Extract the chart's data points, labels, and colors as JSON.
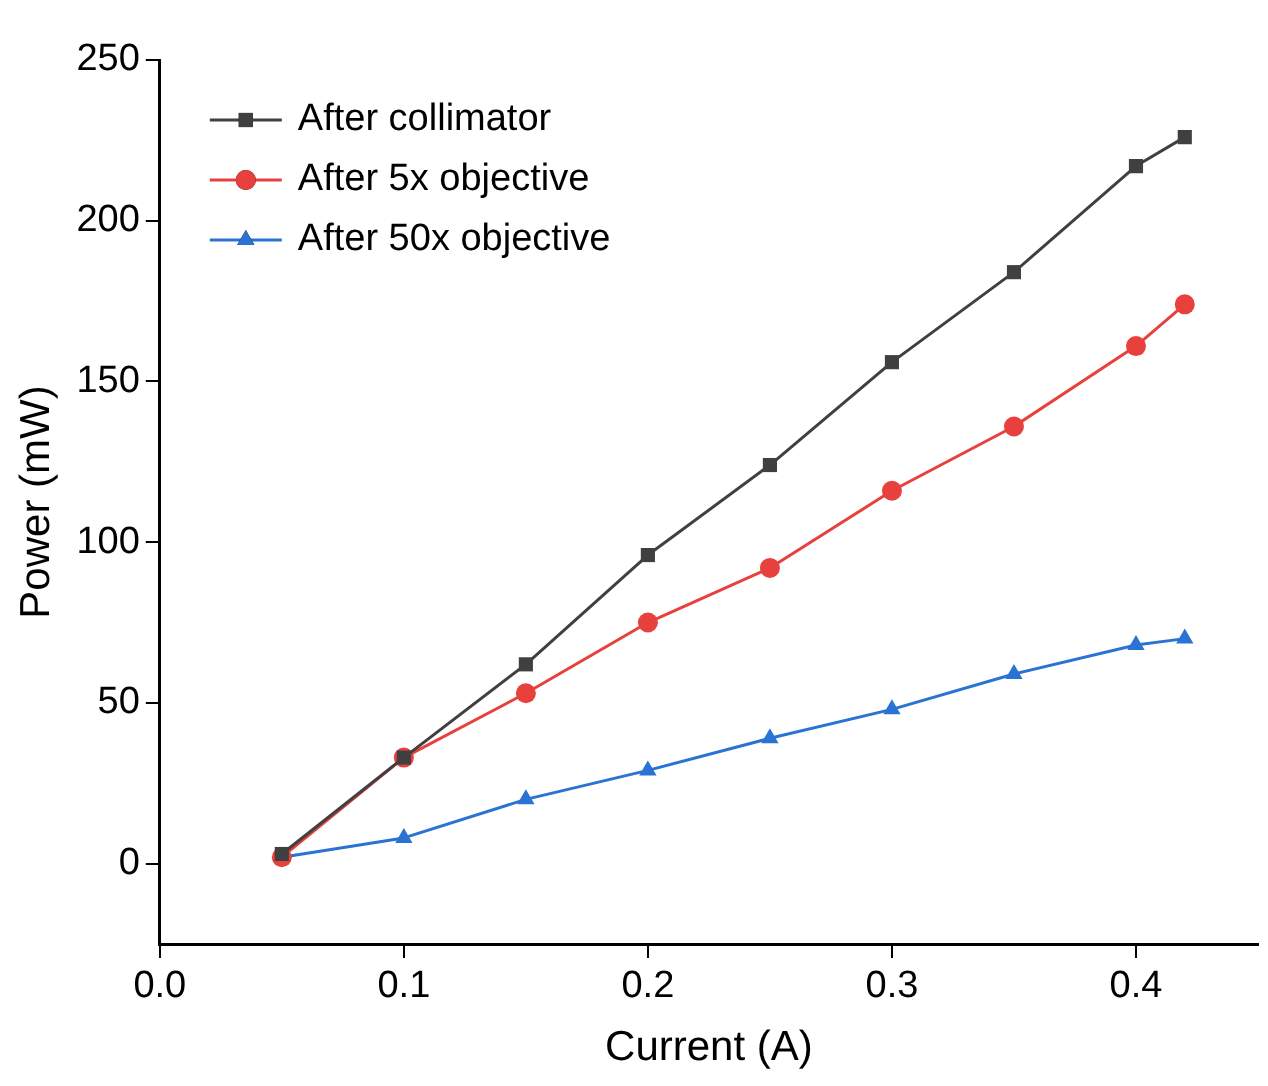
{
  "chart_data": {
    "type": "line",
    "xlabel": "Current (A)",
    "ylabel": "Power (mW)",
    "x": [
      0.05,
      0.1,
      0.15,
      0.2,
      0.25,
      0.3,
      0.35,
      0.4,
      0.42
    ],
    "series": [
      {
        "name": "After collimator",
        "color": "#404040",
        "marker": "square",
        "values": [
          3,
          33,
          62,
          96,
          124,
          156,
          184,
          217,
          226
        ]
      },
      {
        "name": "After 5x objective",
        "color": "#e8403c",
        "marker": "circle",
        "values": [
          2,
          33,
          53,
          75,
          92,
          116,
          136,
          161,
          174
        ]
      },
      {
        "name": "After 50x objective",
        "color": "#2a73d2",
        "marker": "triangle",
        "values": [
          2,
          8,
          20,
          29,
          39,
          48,
          59,
          68,
          70
        ]
      }
    ],
    "xlim": [
      0,
      0.45
    ],
    "xticks": [
      {
        "value": 0,
        "label": "0.0"
      },
      0.1,
      0.2,
      0.3,
      0.4
    ],
    "ylim": [
      -25,
      250
    ],
    "yticks": [
      0,
      50,
      100,
      150,
      200,
      250
    ],
    "grid": false,
    "legend": "top left",
    "line_style": "solid"
  }
}
